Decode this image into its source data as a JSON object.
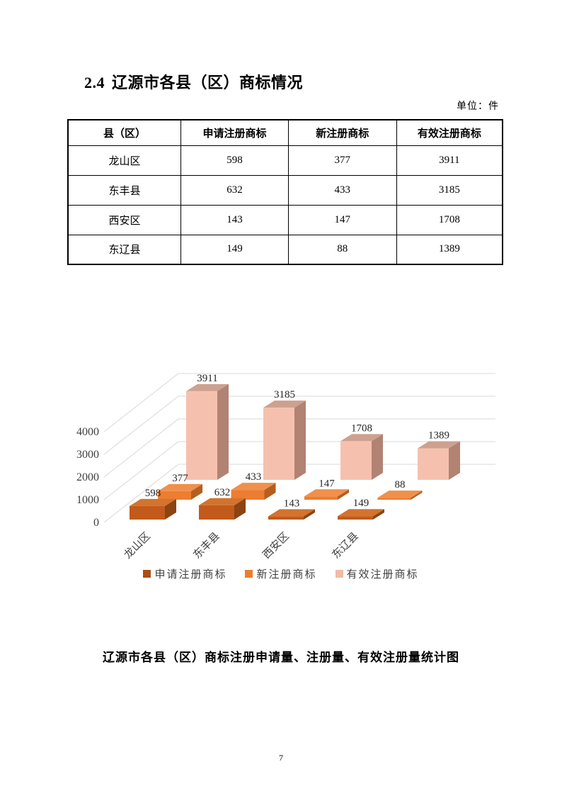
{
  "heading": {
    "number": "2.4",
    "title": "辽源市各县（区）商标情况"
  },
  "unit_label": "单位：件",
  "table": {
    "headers": [
      "县（区）",
      "申请注册商标",
      "新注册商标",
      "有效注册商标"
    ],
    "rows": [
      [
        "龙山区",
        "598",
        "377",
        "3911"
      ],
      [
        "东丰县",
        "632",
        "433",
        "3185"
      ],
      [
        "西安区",
        "143",
        "147",
        "1708"
      ],
      [
        "东辽县",
        "149",
        "88",
        "1389"
      ]
    ]
  },
  "chart_data": {
    "type": "bar",
    "style": "3d-column",
    "title": "辽源市各县（区）商标注册申请量、注册量、有效注册量统计图",
    "categories": [
      "龙山区",
      "东丰县",
      "西安区",
      "东辽县"
    ],
    "series": [
      {
        "name": "申请注册商标",
        "values": [
          598,
          632,
          143,
          149
        ],
        "color": "#C25A1B",
        "top_color": "#D3732E",
        "side_color": "#8C4412",
        "legend_color": "#AC4E13"
      },
      {
        "name": "新注册商标",
        "values": [
          377,
          433,
          147,
          88
        ],
        "color": "#ED7D31",
        "top_color": "#F0904C",
        "side_color": "#B55E1F",
        "legend_color": "#ED7D31"
      },
      {
        "name": "有效注册商标",
        "values": [
          3911,
          3185,
          1708,
          1389
        ],
        "color": "#F5C1AE",
        "top_color": "#CDA190",
        "side_color": "#B28272",
        "legend_color": "#F2BBA7"
      }
    ],
    "yticks": [
      0,
      1000,
      2000,
      3000,
      4000
    ],
    "ylim": [
      0,
      4000
    ],
    "grid": true,
    "grid_color": "#D8D8D8",
    "legend_position": "bottom"
  },
  "page": {
    "number": "7"
  }
}
